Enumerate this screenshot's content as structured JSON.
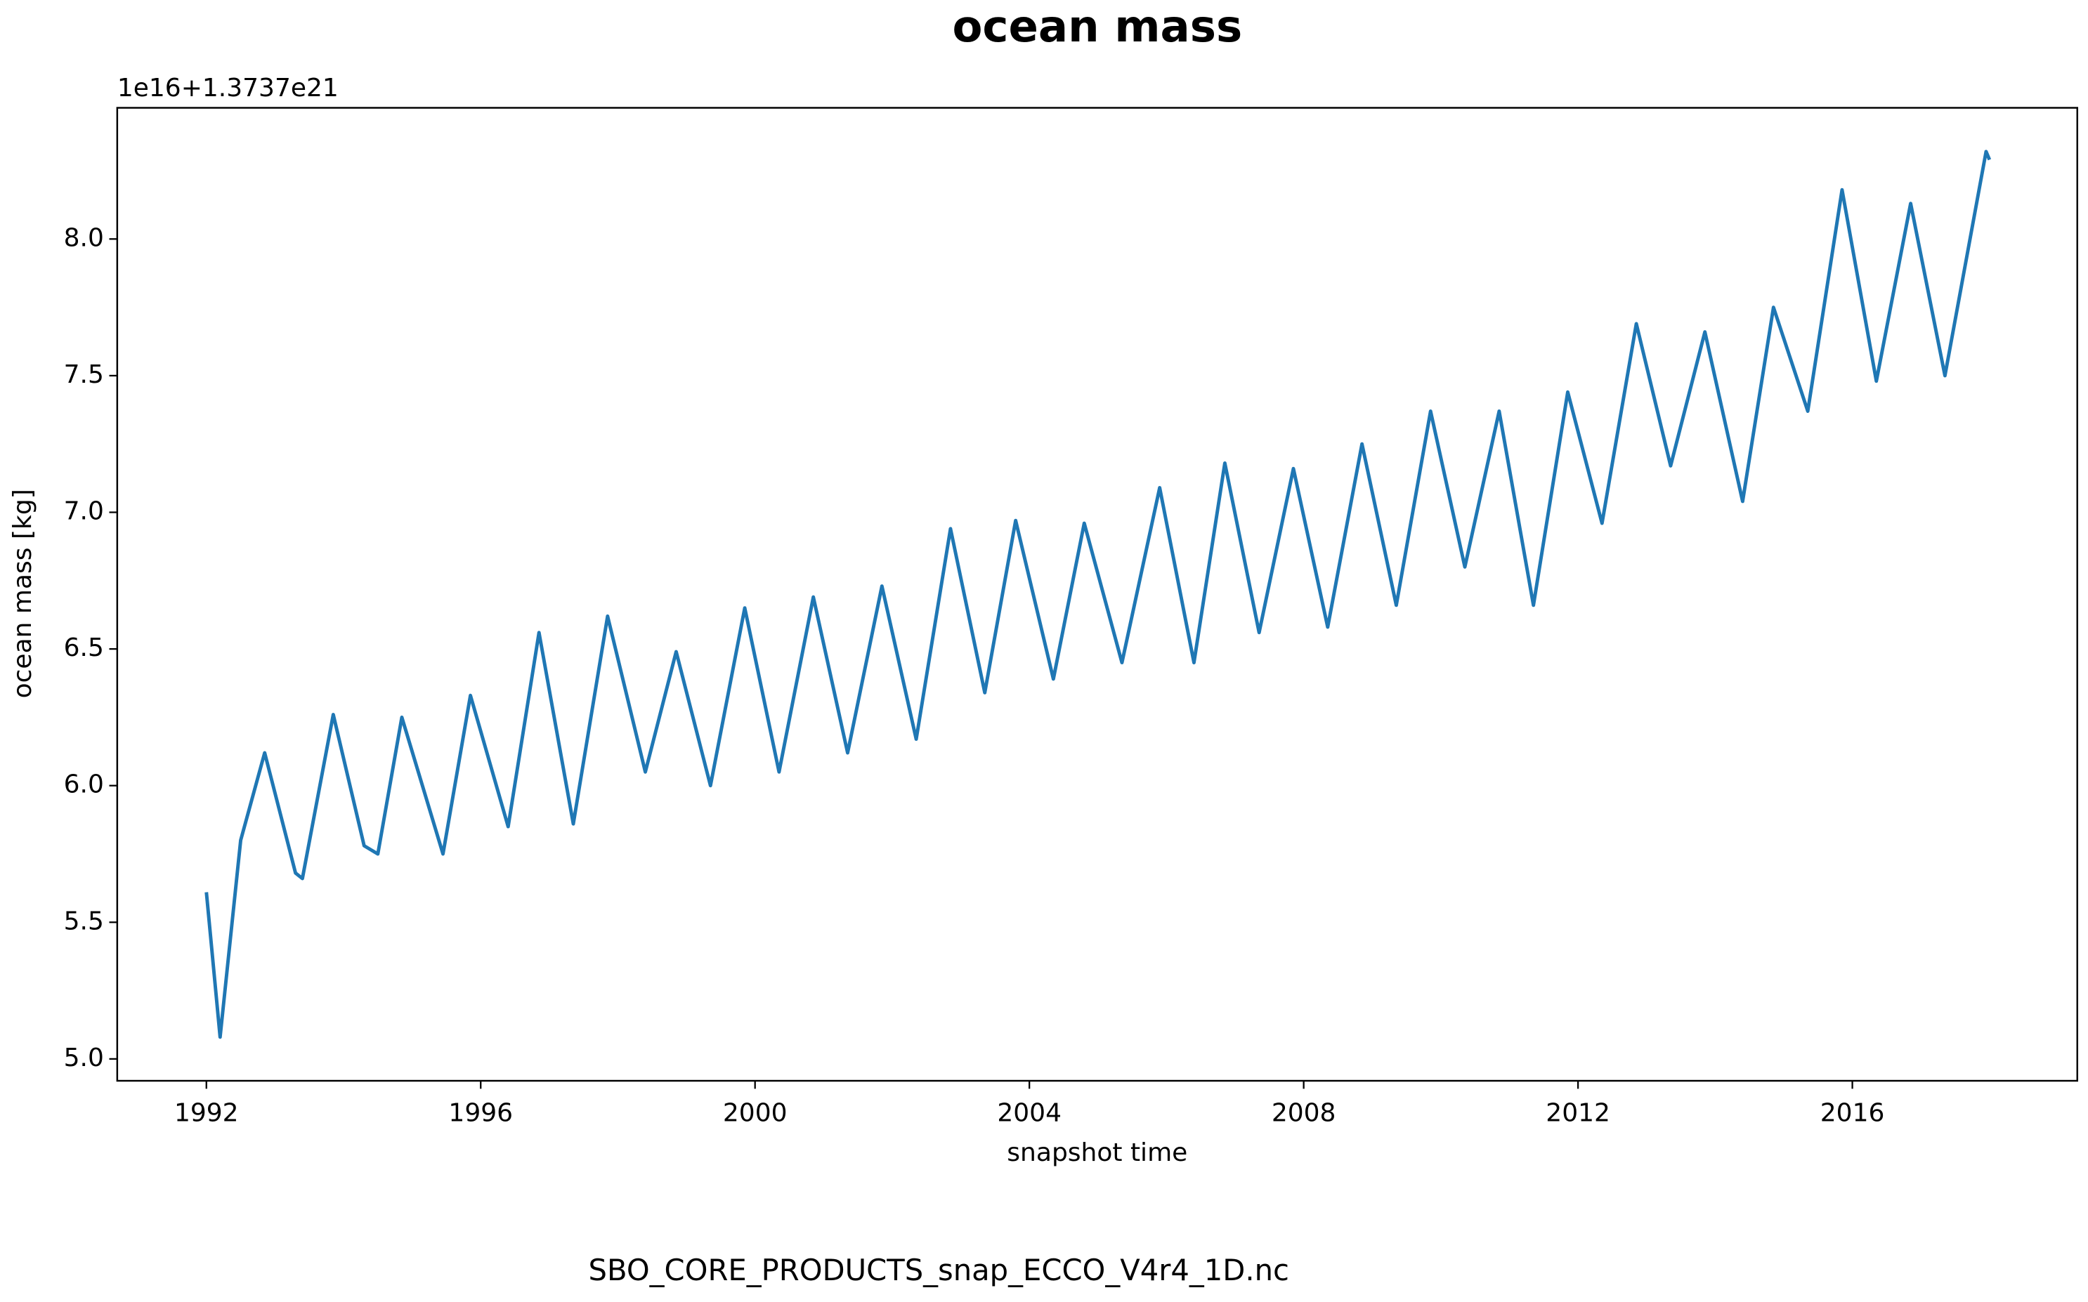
{
  "chart_data": {
    "type": "line",
    "title": "ocean mass",
    "x_label": "snapshot time",
    "y_label": "ocean mass [kg]",
    "y_offset_label": "1e16+1.3737e21",
    "footer": "SBO_CORE_PRODUCTS_snap_ECCO_V4r4_1D.nc",
    "xlim": [
      1990.7,
      2019.28
    ],
    "ylim": [
      4.92,
      8.48
    ],
    "xticks": [
      1992,
      1996,
      2000,
      2004,
      2008,
      2012,
      2016
    ],
    "yticks": [
      {
        "value": 5,
        "label": "5.0"
      },
      5.5,
      {
        "value": 6,
        "label": "6.0"
      },
      6.5,
      {
        "value": 7,
        "label": "7.0"
      },
      7.5,
      {
        "value": 8,
        "label": "8.0"
      }
    ],
    "grid": false,
    "series": [
      {
        "name": "ocean mass",
        "color": "#1f77b4",
        "x": [
          1992.0,
          1992.2,
          1992.5,
          1992.85,
          1993.3,
          1993.4,
          1993.85,
          1994.3,
          1994.5,
          1994.85,
          1995.45,
          1995.85,
          1996.4,
          1996.85,
          1997.35,
          1997.85,
          1998.4,
          1998.85,
          1999.35,
          1999.85,
          2000.35,
          2000.85,
          2001.35,
          2001.85,
          2002.35,
          2002.85,
          2003.35,
          2003.8,
          2004.35,
          2004.8,
          2005.35,
          2005.9,
          2006.4,
          2006.85,
          2007.35,
          2007.85,
          2008.35,
          2008.85,
          2009.35,
          2009.85,
          2010.35,
          2010.85,
          2011.35,
          2011.85,
          2012.35,
          2012.85,
          2013.35,
          2013.85,
          2014.4,
          2014.85,
          2015.35,
          2015.85,
          2016.35,
          2016.85,
          2017.35,
          2017.95,
          2018.0
        ],
        "values": [
          5.61,
          5.08,
          5.8,
          6.12,
          5.68,
          5.66,
          6.26,
          5.78,
          5.75,
          6.25,
          5.75,
          6.33,
          5.85,
          6.56,
          5.86,
          6.62,
          6.05,
          6.49,
          6.0,
          6.65,
          6.05,
          6.69,
          6.12,
          6.73,
          6.17,
          6.94,
          6.34,
          6.97,
          6.39,
          6.96,
          6.45,
          7.09,
          6.45,
          7.18,
          6.56,
          7.16,
          6.58,
          7.25,
          6.66,
          7.37,
          6.8,
          7.37,
          6.66,
          7.44,
          6.96,
          7.69,
          7.17,
          7.66,
          7.04,
          7.75,
          7.37,
          8.18,
          7.48,
          8.13,
          7.5,
          8.32,
          8.29
        ]
      }
    ]
  }
}
